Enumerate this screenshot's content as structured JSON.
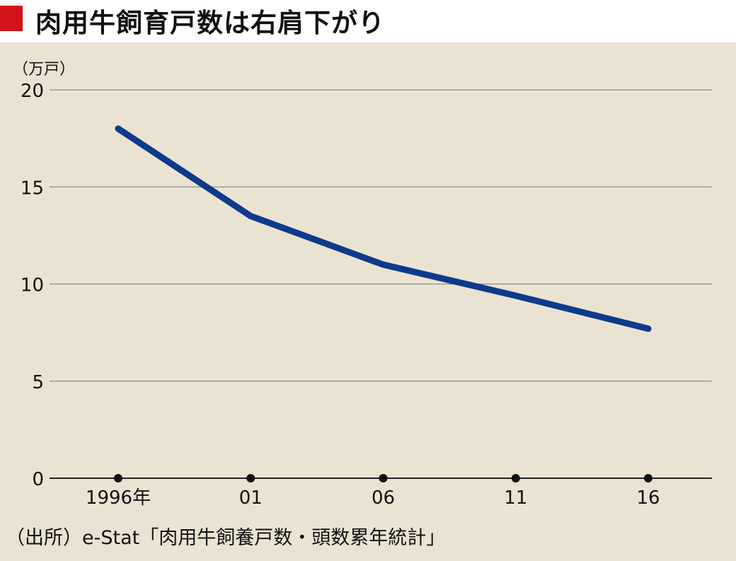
{
  "header": {
    "title": "肉用牛飼育戸数は右肩下がり"
  },
  "chart_data": {
    "type": "line",
    "title": "肉用牛飼育戸数は右肩下がり",
    "unit_label": "（万戸）",
    "x": [
      1996,
      2001,
      2006,
      2011,
      2016
    ],
    "x_tick_labels": [
      "1996年",
      "01",
      "06",
      "11",
      "16"
    ],
    "y_ticks": [
      0,
      5,
      10,
      15,
      20
    ],
    "ylim": [
      0,
      20
    ],
    "grid": true,
    "series": [
      {
        "values": [
          18.0,
          13.5,
          11.0,
          9.4,
          7.7
        ],
        "color": "#0d3a8c"
      }
    ]
  },
  "footer": {
    "source": "（出所）e-Stat「肉用牛飼養戸数・頭数累年統計」"
  },
  "colors": {
    "accent": "#d3141c",
    "background": "#ebe3d2",
    "line": "#0d3a8c",
    "grid": "#8a8a8a"
  }
}
